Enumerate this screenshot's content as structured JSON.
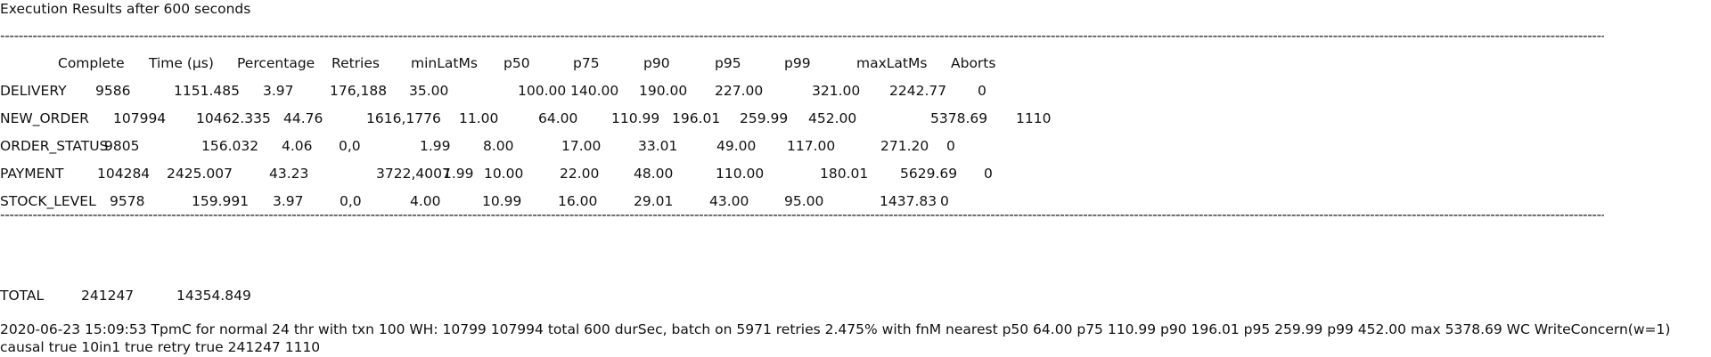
{
  "title": "Execution Results after 600 seconds",
  "separator": "-----------------------------------------------------------------------------------------------------------------------------------------------------------------------------------------------------------------------------------------------------------------------------------------------------------------------------------------------------------------------------------------------------------------------------------------------------------------------------------------------------------------------------------------------------------------------------------------------------------------------------------------------------------",
  "header": [
    "Complete",
    "Time (µs)",
    "Percentage",
    "Retries",
    "minLatMs",
    "p50",
    "p75",
    "p90",
    "p95",
    "p99",
    "maxLatMs",
    "Aborts"
  ],
  "rows": [
    [
      "DELIVERY",
      "9586",
      "1151.485",
      "3.97",
      "176,188",
      "35.00",
      "100.00",
      "140.00",
      "190.00",
      "227.00",
      "321.00",
      "2242.77",
      "0"
    ],
    [
      "NEW_ORDER",
      "107994",
      "10462.335",
      "44.76",
      "1616,1776",
      "11.00",
      "64.00",
      "110.99",
      "196.01",
      "259.99",
      "452.00",
      "5378.69",
      "1110"
    ],
    [
      "ORDER_STATUS",
      "9805",
      "156.032",
      "4.06",
      "0,0",
      "1.99",
      "8.00",
      "17.00",
      "33.01",
      "49.00",
      "117.00",
      "271.20",
      "0"
    ],
    [
      "PAYMENT",
      "104284",
      "2425.007",
      "43.23",
      "3722,4007",
      "1.99",
      "10.00",
      "22.00",
      "48.00",
      "110.00",
      "180.01",
      "5629.69",
      "0"
    ],
    [
      "STOCK_LEVEL",
      "9578",
      "159.991",
      "3.97",
      "0,0",
      "4.00",
      "10.99",
      "16.00",
      "29.01",
      "43.00",
      "95.00",
      "1437.83",
      "0"
    ]
  ],
  "total": [
    "TOTAL",
    "241247",
    "14354.849"
  ],
  "footer": "2020-06-23 15:09:53 TpmC for normal 24 thr with txn 100 WH: 10799 107994 total 600 durSec, batch on 5971 retries 2.475% with fnM nearest p50  64.00 p75 110.99 p90 196.01 p95 259.99 p99 452.00 max 5378.69 WC WriteConcern(w=1) causal true 10in1 true retry true 241247 1110"
}
